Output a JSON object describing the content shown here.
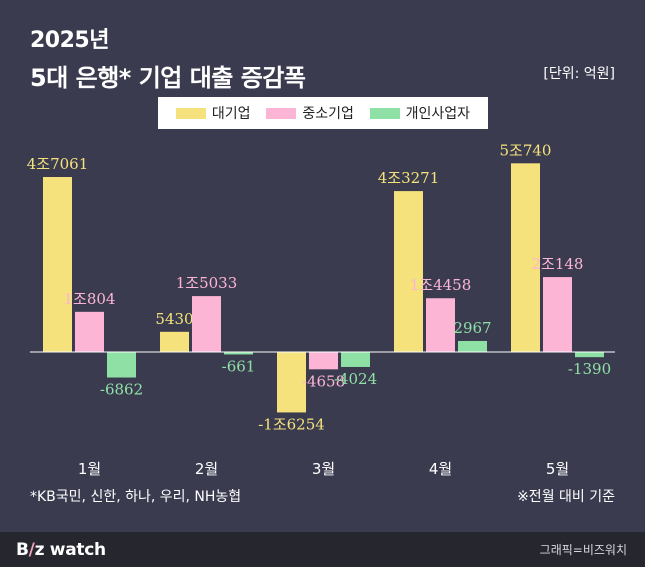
{
  "header": {
    "year_title": "2025년",
    "title": "5대 은행* 기업 대출 증감폭",
    "unit": "[단위: 억원]"
  },
  "notes": {
    "left": "*KB국민, 신한, 하나, 우리, NH농협",
    "right": "※전월 대비 기준"
  },
  "footer": {
    "brand_b": "B",
    "brand_slash": "/",
    "brand_rest": "z watch",
    "credit": "그래픽=비즈워치"
  },
  "colors": {
    "background": "#3a3b4f",
    "series": [
      "#f5e27c",
      "#fdb5d6",
      "#8fe0a4"
    ]
  },
  "chart_data": {
    "type": "bar",
    "categories": [
      "1월",
      "2월",
      "3월",
      "4월",
      "5월"
    ],
    "series": [
      {
        "name": "대기업",
        "values": [
          47061,
          5430,
          -16254,
          43271,
          50740
        ],
        "labels": [
          "4조7061",
          "5430",
          "-1조6254",
          "4조3271",
          "5조740"
        ]
      },
      {
        "name": "중소기업",
        "values": [
          10804,
          15033,
          -4658,
          14458,
          20148
        ],
        "labels": [
          "1조804",
          "1조5033",
          "-4658",
          "1조4458",
          "2조148"
        ]
      },
      {
        "name": "개인사업자",
        "values": [
          -6862,
          -661,
          -4024,
          2967,
          -1390
        ],
        "labels": [
          "-6862",
          "-661",
          "-4024",
          "2967",
          "-1390"
        ]
      }
    ],
    "legend_position": "top-center",
    "grid": false
  }
}
